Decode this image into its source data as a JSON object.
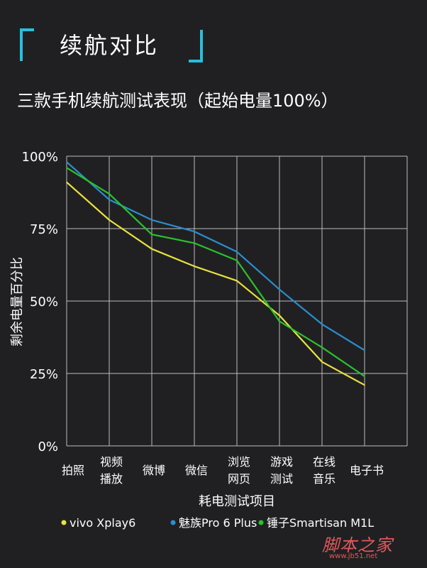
{
  "header": {
    "title": "续航对比"
  },
  "subtitle": "三款手机续航测试表现（起始电量100%）",
  "chart_data": {
    "type": "line",
    "title": "",
    "xlabel": "耗电测试项目",
    "ylabel": "剩余电量百分比",
    "ylim": [
      0,
      100
    ],
    "yticks": [
      "0%",
      "25%",
      "50%",
      "75%",
      "100%"
    ],
    "categories": [
      [
        "拍照"
      ],
      [
        "视频",
        "播放"
      ],
      [
        "微博"
      ],
      [
        "微信"
      ],
      [
        "浏览",
        "网页"
      ],
      [
        "游戏",
        "测试"
      ],
      [
        "在线",
        "音乐"
      ],
      [
        "电子书"
      ]
    ],
    "series": [
      {
        "name": "vivo Xplay6",
        "color": "#e8e23c",
        "values": [
          91,
          78,
          68,
          62,
          57,
          45,
          29,
          21
        ]
      },
      {
        "name": "魅族Pro 6 Plus",
        "color": "#2a8fce",
        "values": [
          98,
          85,
          78,
          74,
          67,
          54,
          42,
          33
        ]
      },
      {
        "name": "锤子Smartisan M1L",
        "color": "#2ac32a",
        "values": [
          96,
          87,
          73,
          70,
          64,
          43,
          34,
          24
        ]
      }
    ],
    "grid": true,
    "legend_position": "bottom"
  },
  "watermark": {
    "main": "脚本之家",
    "sub": "www.jb51.net"
  }
}
